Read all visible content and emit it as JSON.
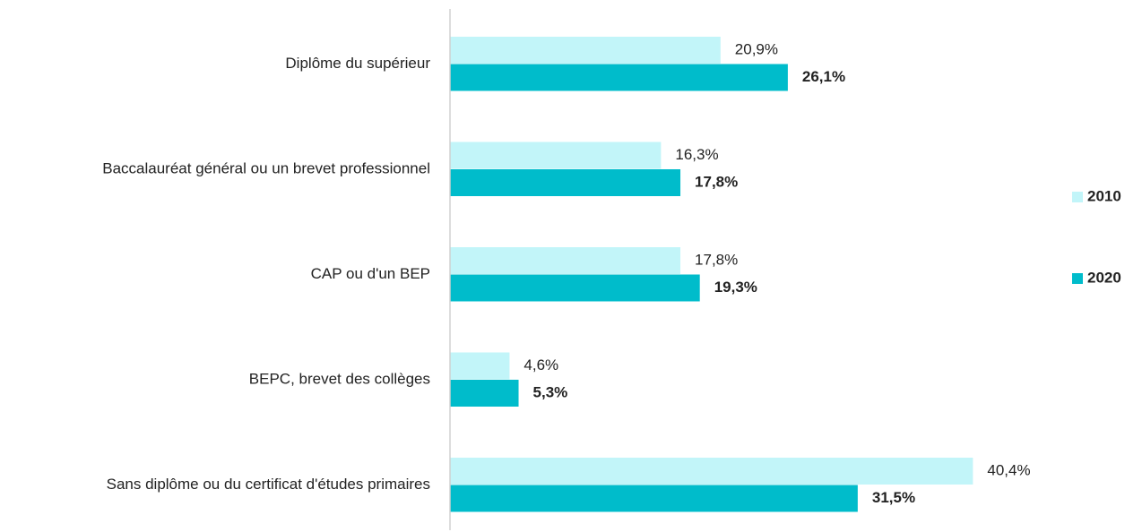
{
  "chart_data": {
    "type": "bar",
    "orientation": "horizontal",
    "categories": [
      "Diplôme du supérieur",
      "Baccalauréat général ou un brevet professionnel",
      "CAP ou d'un BEP",
      "BEPC, brevet des collèges",
      "Sans diplôme ou du certificat d'études primaires"
    ],
    "series": [
      {
        "name": "2010",
        "color": "#c2f5f9",
        "values": [
          20.9,
          16.3,
          17.8,
          4.6,
          40.4
        ],
        "value_labels": [
          "20,9%",
          "16,3%",
          "17,8%",
          "4,6%",
          "40,4%"
        ]
      },
      {
        "name": "2020",
        "color": "#00bccb",
        "values": [
          26.1,
          17.8,
          19.3,
          5.3,
          31.5
        ],
        "value_labels": [
          "26,1%",
          "17,8%",
          "19,3%",
          "5,3%",
          "31,5%"
        ]
      }
    ],
    "xlim": [
      0,
      50
    ],
    "legend": "right"
  }
}
